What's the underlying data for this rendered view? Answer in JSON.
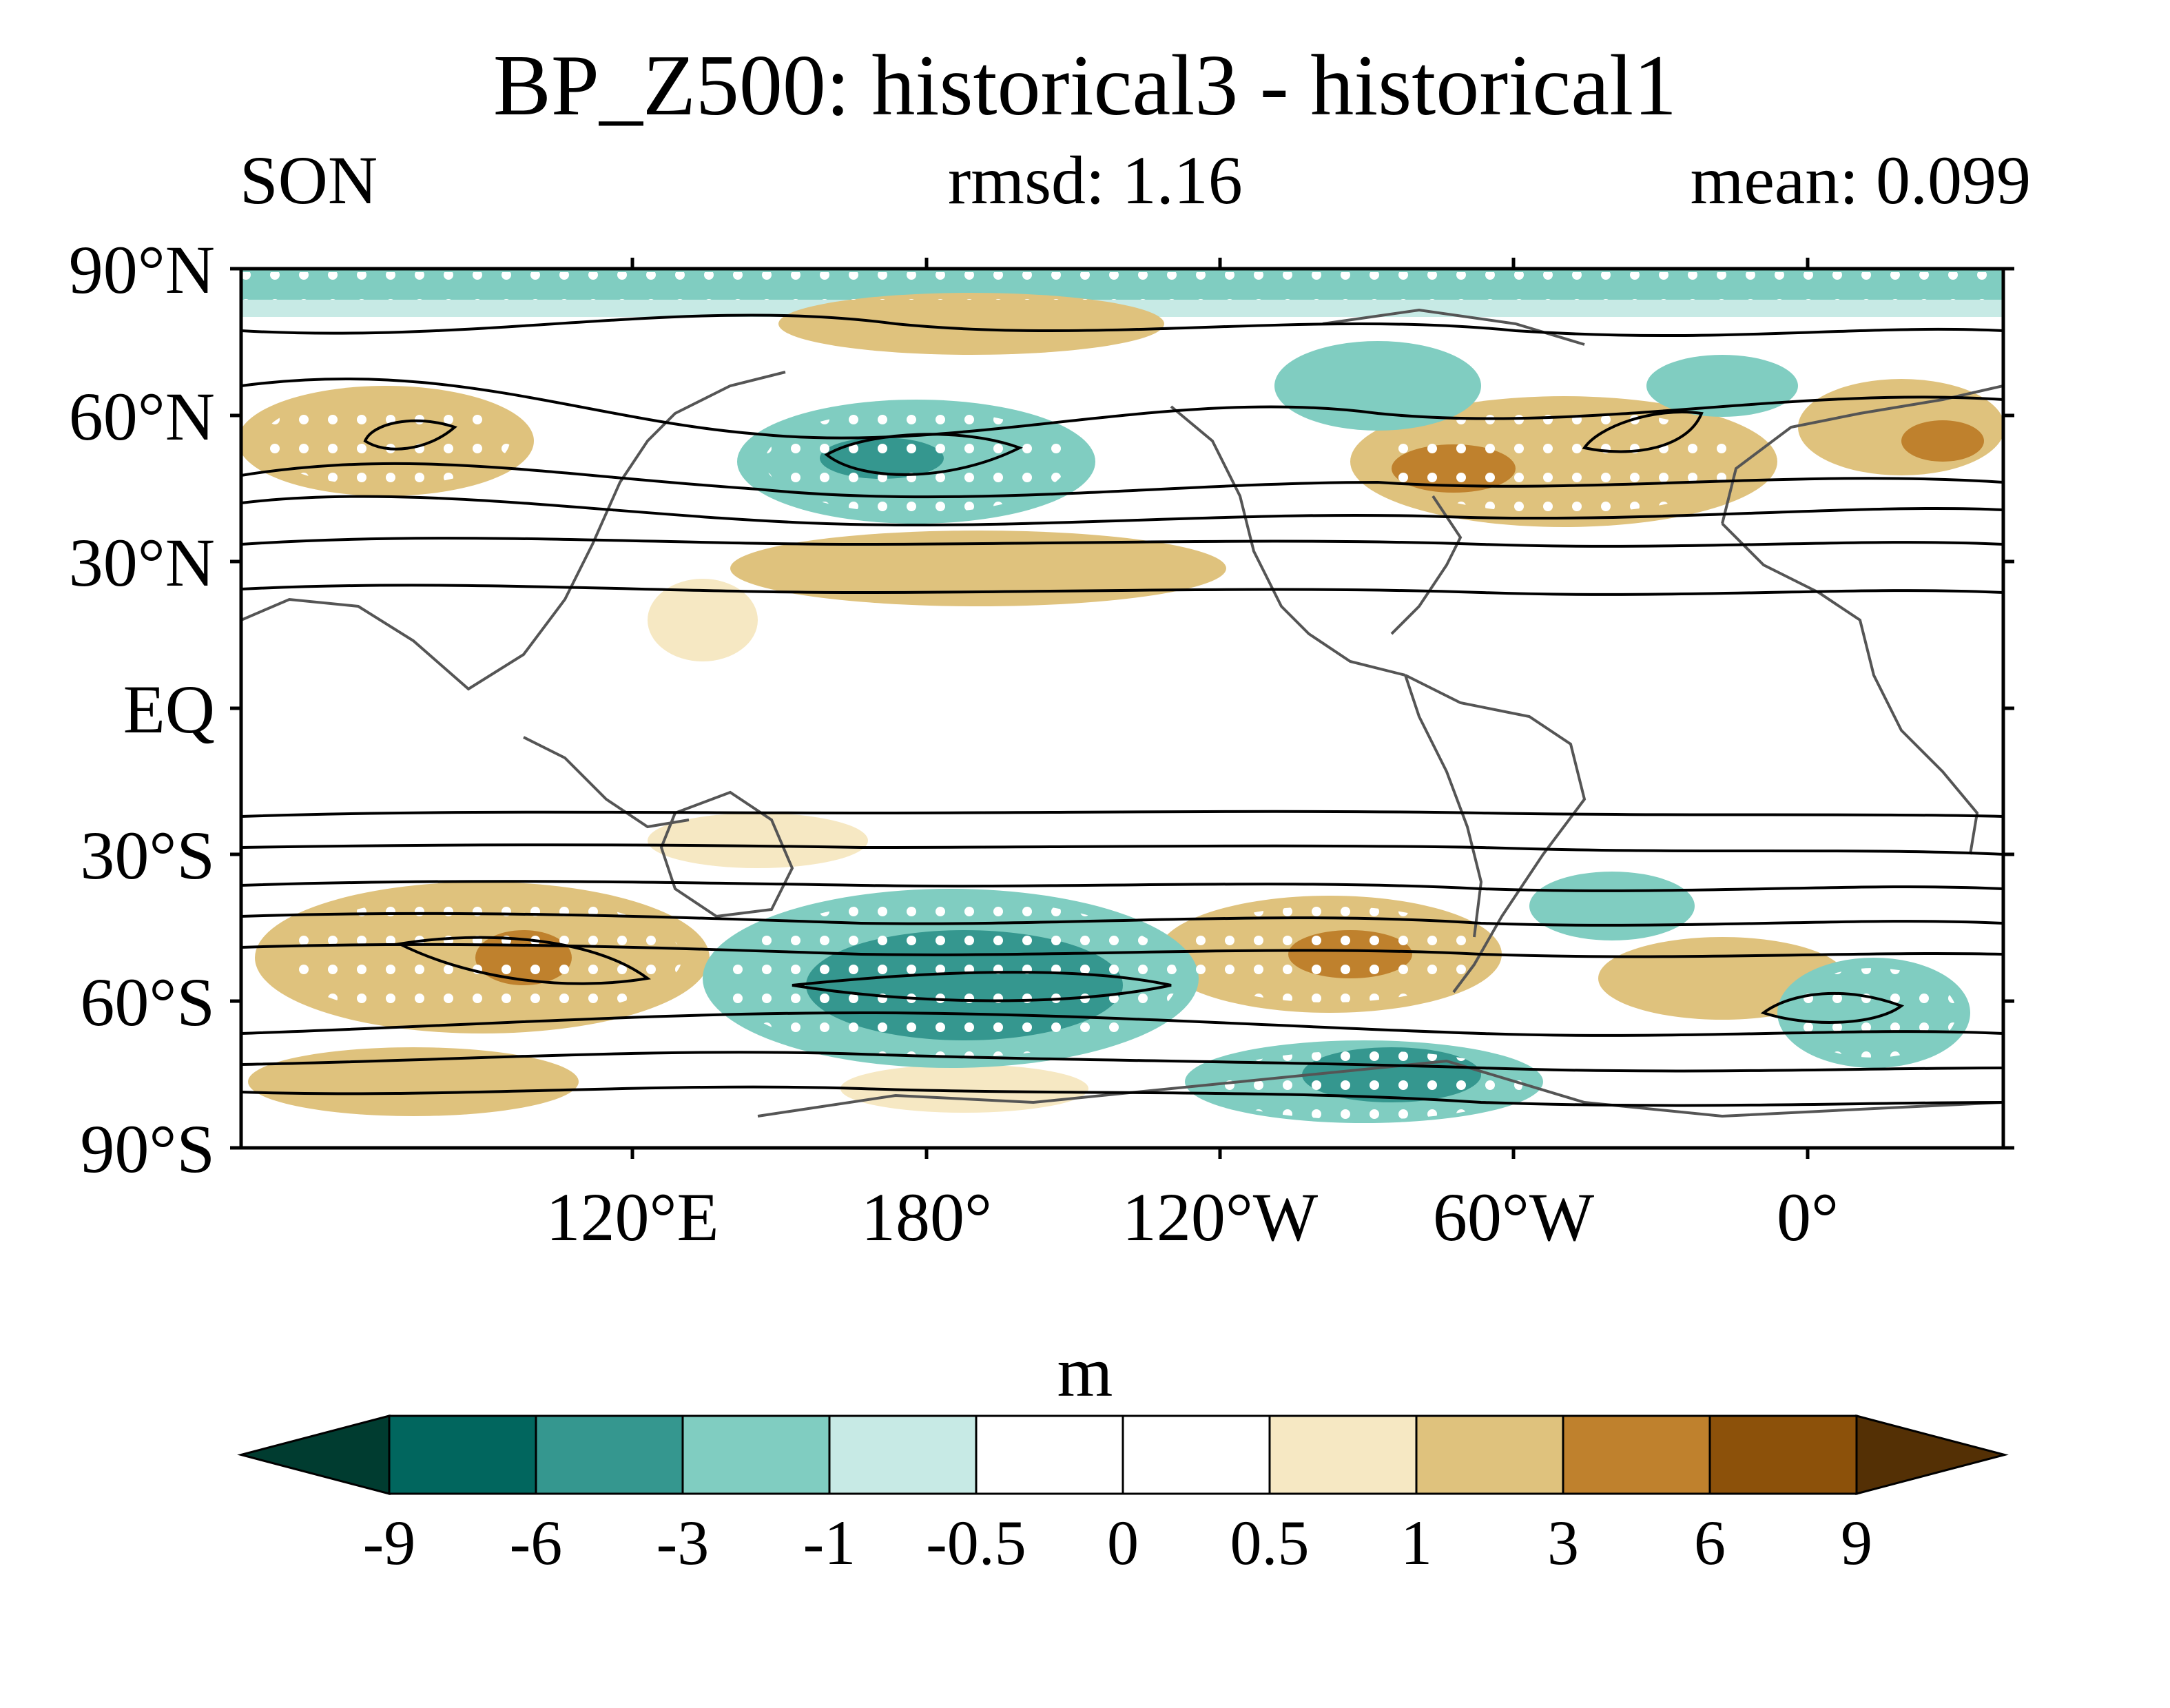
{
  "title": "BP_Z500: historical3 - historical1",
  "season": "SON",
  "rmsd": "rmsd: 1.16",
  "mean": "mean: 0.099",
  "map": {
    "lat_labels": [
      "90°N",
      "60°N",
      "30°N",
      "EQ",
      "30°S",
      "60°S",
      "90°S"
    ],
    "lon_labels": [
      "120°E",
      "180°",
      "120°W",
      "60°W",
      "0°"
    ],
    "lon_range": [
      40,
      400
    ],
    "lat_range": [
      -90,
      90
    ],
    "shading_field": "Z500 difference (historical3 - historical1)",
    "contours": "climatological Z500 (black lines)",
    "stippling": "white dots = significant"
  },
  "colorbar": {
    "unit": "m",
    "levels": [
      "-9",
      "-6",
      "-3",
      "-1",
      "-0.5",
      "0",
      "0.5",
      "1",
      "3",
      "6",
      "9"
    ],
    "colors": [
      "#003c30",
      "#01665e",
      "#35978f",
      "#80cdc1",
      "#c7eae5",
      "#ffffff",
      "#ffffff",
      "#f6e8c3",
      "#dfc27d",
      "#bf812d",
      "#8c510a",
      "#543005"
    ]
  }
}
